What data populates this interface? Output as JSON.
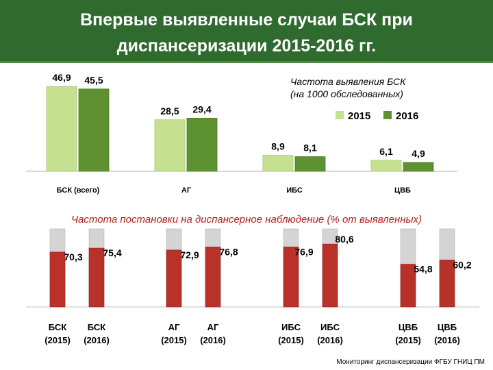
{
  "header": {
    "title": "Впервые выявленные случаи БСК при\nдиспансеризации 2015-2016 гг."
  },
  "footer": {
    "source": "Мониторинг диспансеризации ФГБУ ГНИЦ ПМ"
  },
  "colors": {
    "light_green": "#c5e08f",
    "dark_green": "#5e9231",
    "red": "#b8322a",
    "gray": "#d4d4d4",
    "header_green": "#2f6a2f",
    "subtitle_red": "#b32020"
  },
  "chart_data": [
    {
      "type": "bar",
      "title": "Частота выявления БСК\n(на 1000 обследованных)",
      "categories": [
        "БСК (всего)",
        "АГ",
        "ИБС",
        "ЦВБ"
      ],
      "series": [
        {
          "name": "2015",
          "values": [
            46.9,
            28.5,
            8.9,
            6.1
          ],
          "labels": [
            "46,9",
            "28,5",
            "8,9",
            "6,1"
          ]
        },
        {
          "name": "2016",
          "values": [
            45.5,
            29.4,
            8.1,
            4.9
          ],
          "labels": [
            "45,5",
            "29,4",
            "8,1",
            "4,9"
          ]
        }
      ],
      "ylim": [
        0,
        50
      ],
      "grid": false,
      "legend_position": "top-right"
    },
    {
      "type": "bar",
      "title": "Частота  постановки на диспансерное наблюдение (% от выявленных)",
      "stacked_to": 100,
      "categories": [
        "БСК\n(2015)",
        "БСК\n(2016)",
        "АГ\n(2015)",
        "АГ\n(2016)",
        "ИБС\n(2015)",
        "ИБС\n(2016)",
        "ЦВБ\n(2015)",
        "ЦВБ\n(2016)"
      ],
      "values": [
        70.3,
        75.4,
        72.9,
        76.8,
        76.9,
        80.6,
        54.8,
        60.2
      ],
      "labels": [
        "70,3",
        "75,4",
        "72,9",
        "76,8",
        "76,9",
        "80,6",
        "54,8",
        "60,2"
      ],
      "ylim": [
        0,
        100
      ],
      "grid": false
    }
  ]
}
